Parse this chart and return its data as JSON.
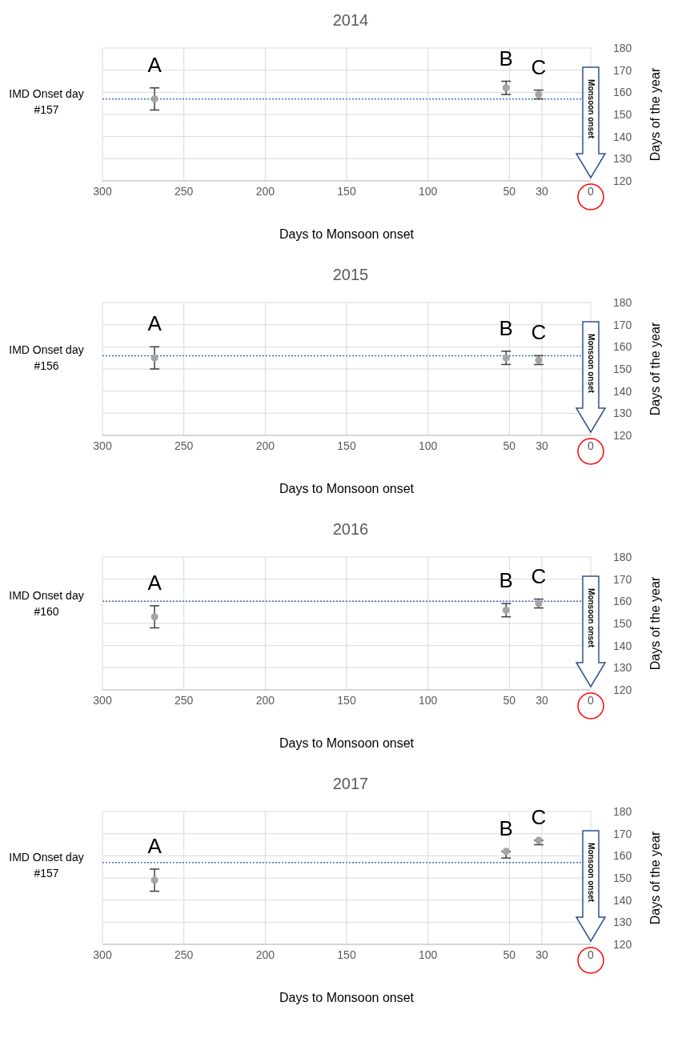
{
  "chart_data": [
    {
      "type": "scatter",
      "title": "2014",
      "xlabel": "Days to Monsoon onset",
      "ylabel": "Days of the year",
      "xlim": [
        300,
        0
      ],
      "xticks": [
        300,
        250,
        200,
        150,
        100,
        50,
        30,
        0
      ],
      "ylim": [
        120,
        180
      ],
      "yticks": [
        120,
        130,
        140,
        150,
        160,
        170,
        180
      ],
      "grid": true,
      "marker": "circle",
      "series": [
        {
          "color": "#a5a5a5",
          "x": [
            268,
            52,
            32
          ],
          "values": [
            157,
            162,
            159
          ],
          "errors": [
            [
              152,
              162
            ],
            [
              159,
              165
            ],
            [
              157,
              161
            ]
          ]
        }
      ],
      "ref_lines": [
        {
          "axis": "y",
          "value": 157,
          "label": "IMD Onset day #157",
          "color": "#4472c4",
          "line_style": "dotted"
        }
      ],
      "annotations": [
        "A",
        "B",
        "C",
        "Monsoon onset"
      ]
    },
    {
      "type": "scatter",
      "title": "2015",
      "xlabel": "Days to Monsoon onset",
      "ylabel": "Days of the year",
      "xlim": [
        300,
        0
      ],
      "xticks": [
        300,
        250,
        200,
        150,
        100,
        50,
        30,
        0
      ],
      "ylim": [
        120,
        180
      ],
      "yticks": [
        120,
        130,
        140,
        150,
        160,
        170,
        180
      ],
      "grid": true,
      "marker": "circle",
      "series": [
        {
          "color": "#a5a5a5",
          "x": [
            268,
            52,
            32
          ],
          "values": [
            155,
            155,
            154
          ],
          "errors": [
            [
              150,
              160
            ],
            [
              152,
              158
            ],
            [
              152,
              156
            ]
          ]
        }
      ],
      "ref_lines": [
        {
          "axis": "y",
          "value": 156,
          "label": "IMD Onset day #156",
          "color": "#4472c4",
          "line_style": "dotted"
        }
      ],
      "annotations": [
        "A",
        "B",
        "C",
        "Monsoon onset"
      ]
    },
    {
      "type": "scatter",
      "title": "2016",
      "xlabel": "Days to Monsoon onset",
      "ylabel": "Days of the year",
      "xlim": [
        300,
        0
      ],
      "xticks": [
        300,
        250,
        200,
        150,
        100,
        50,
        30,
        0
      ],
      "ylim": [
        120,
        180
      ],
      "yticks": [
        120,
        130,
        140,
        150,
        160,
        170,
        180
      ],
      "grid": true,
      "marker": "circle",
      "series": [
        {
          "color": "#a5a5a5",
          "x": [
            268,
            52,
            32
          ],
          "values": [
            153,
            156,
            159
          ],
          "errors": [
            [
              148,
              158
            ],
            [
              153,
              159
            ],
            [
              157,
              161
            ]
          ]
        }
      ],
      "ref_lines": [
        {
          "axis": "y",
          "value": 160,
          "label": "IMD Onset day #160",
          "color": "#4472c4",
          "line_style": "dotted"
        }
      ],
      "annotations": [
        "A",
        "B",
        "C",
        "Monsoon onset"
      ]
    },
    {
      "type": "scatter",
      "title": "2017",
      "xlabel": "Days to Monsoon onset",
      "ylabel": "Days of the year",
      "xlim": [
        300,
        0
      ],
      "xticks": [
        300,
        250,
        200,
        150,
        100,
        50,
        30,
        0
      ],
      "ylim": [
        120,
        180
      ],
      "yticks": [
        120,
        130,
        140,
        150,
        160,
        170,
        180
      ],
      "grid": true,
      "marker": "circle",
      "series": [
        {
          "color": "#a5a5a5",
          "x": [
            268,
            52,
            32
          ],
          "values": [
            149,
            162,
            167
          ],
          "errors": [
            [
              144,
              154
            ],
            [
              159,
              162
            ],
            [
              165,
              167
            ]
          ]
        }
      ],
      "ref_lines": [
        {
          "axis": "y",
          "value": 157,
          "label": "IMD Onset day #157",
          "color": "#4472c4",
          "line_style": "dotted"
        }
      ],
      "annotations": [
        "A",
        "B",
        "C",
        "Monsoon onset"
      ]
    }
  ]
}
